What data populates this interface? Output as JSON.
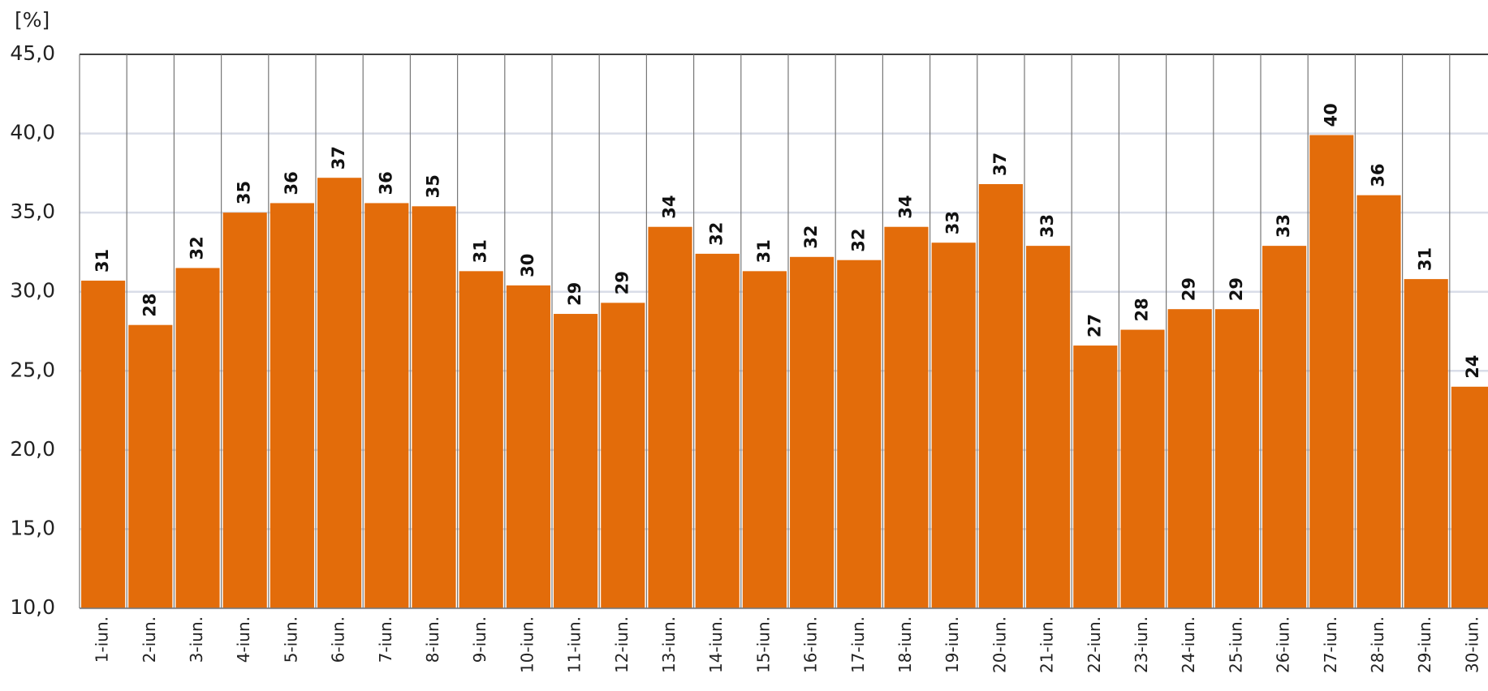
{
  "chart_data": {
    "type": "bar",
    "y_label": "[%]",
    "categories": [
      "1-iun.",
      "2-iun.",
      "3-iun.",
      "4-iun.",
      "5-iun.",
      "6-iun.",
      "7-iun.",
      "8-iun.",
      "9-iun.",
      "10-iun.",
      "11-iun.",
      "12-iun.",
      "13-iun.",
      "14-iun.",
      "15-iun.",
      "16-iun.",
      "17-iun.",
      "18-iun.",
      "19-iun.",
      "20-iun.",
      "21-iun.",
      "22-iun.",
      "23-iun.",
      "24-iun.",
      "25-iun.",
      "26-iun.",
      "27-iun.",
      "28-iun.",
      "29-iun.",
      "30-iun."
    ],
    "values": [
      30.7,
      27.9,
      31.5,
      35.0,
      35.6,
      37.2,
      35.6,
      35.4,
      31.3,
      30.4,
      28.6,
      29.3,
      34.1,
      32.4,
      31.3,
      32.2,
      32.0,
      34.1,
      33.1,
      36.8,
      32.9,
      26.6,
      27.6,
      28.9,
      28.9,
      32.9,
      39.9,
      36.1,
      30.8,
      24.0
    ],
    "value_labels": [
      "31",
      "28",
      "32",
      "35",
      "36",
      "37",
      "36",
      "35",
      "31",
      "30",
      "29",
      "29",
      "34",
      "32",
      "31",
      "32",
      "32",
      "34",
      "33",
      "37",
      "33",
      "27",
      "28",
      "29",
      "29",
      "33",
      "40",
      "36",
      "31",
      "24"
    ],
    "color": "#e36c0a",
    "ylim": [
      10,
      45
    ],
    "yticks": [
      {
        "value": 10,
        "label": "10,0"
      },
      {
        "value": 15,
        "label": "15,0"
      },
      {
        "value": 20,
        "label": "20,0"
      },
      {
        "value": 25,
        "label": "25,0"
      },
      {
        "value": 30,
        "label": "30,0"
      },
      {
        "value": 35,
        "label": "35,0"
      },
      {
        "value": 40,
        "label": "40,0"
      },
      {
        "value": 45,
        "label": "45,0"
      }
    ],
    "grid": true
  }
}
